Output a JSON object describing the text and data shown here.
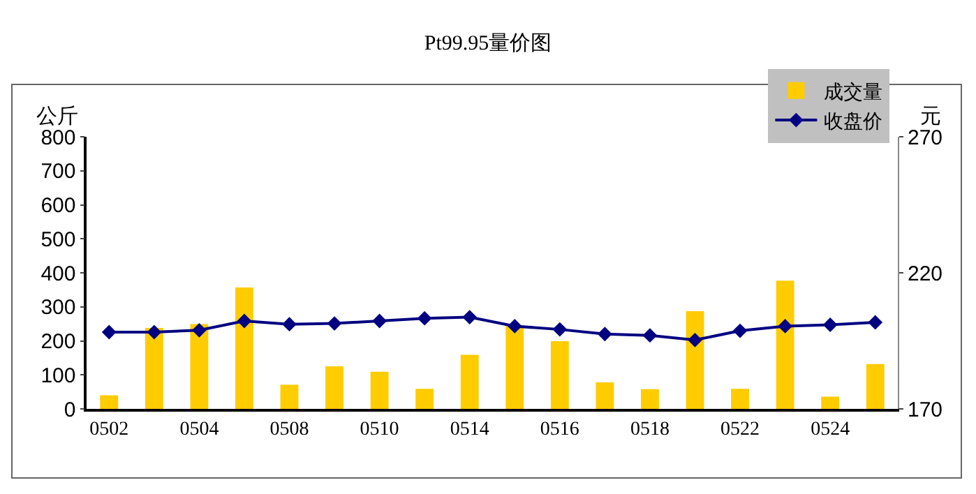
{
  "chart_data": {
    "type": "bar",
    "title": "Pt99.95量价图",
    "ylabel": "公斤",
    "y2label": "元",
    "categories": [
      "0502",
      null,
      "0504",
      null,
      "0508",
      null,
      "0510",
      null,
      "0514",
      null,
      "0516",
      null,
      "0518",
      null,
      "0522",
      null,
      "0524",
      null
    ],
    "series": [
      {
        "name": "成交量",
        "color": "#ffcc00",
        "values": [
          40,
          238,
          249,
          357,
          71,
          125,
          109,
          59,
          159,
          245,
          199,
          78,
          58,
          287,
          59,
          377,
          36,
          132
        ]
      },
      {
        "name": "收盘价",
        "type": "line",
        "axis": "y2",
        "color": "#000080",
        "marker": "diamond",
        "values": [
          198.2,
          198.2,
          198.9,
          202.3,
          201.1,
          201.4,
          202.3,
          203.3,
          203.7,
          200.4,
          199.2,
          197.5,
          197.0,
          195.3,
          198.7,
          200.4,
          200.9,
          201.8
        ]
      }
    ],
    "ylim": [
      0,
      800
    ],
    "yticks": [
      0,
      100,
      200,
      300,
      400,
      500,
      600,
      700,
      800
    ],
    "y2lim": [
      170,
      270
    ],
    "y2ticks": [
      170,
      220,
      270
    ],
    "grid": false,
    "legend": "top right"
  }
}
